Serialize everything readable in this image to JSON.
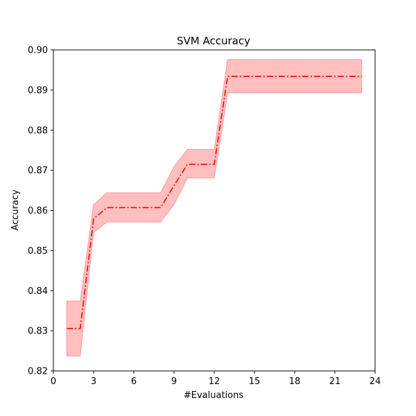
{
  "chart_data": {
    "type": "line",
    "title": "SVM Accuracy",
    "xlabel": "#Evaluations",
    "ylabel": "Accuracy",
    "xlim": [
      0,
      24
    ],
    "ylim": [
      0.82,
      0.9
    ],
    "xticks": [
      0,
      3,
      6,
      9,
      12,
      15,
      18,
      21,
      24
    ],
    "yticks": [
      0.82,
      0.83,
      0.84,
      0.85,
      0.86,
      0.87,
      0.88,
      0.89,
      0.9
    ],
    "xtick_labels": [
      "0",
      "3",
      "6",
      "9",
      "12",
      "15",
      "18",
      "21",
      "24"
    ],
    "ytick_labels": [
      "0.82",
      "0.83",
      "0.84",
      "0.85",
      "0.86",
      "0.87",
      "0.88",
      "0.89",
      "0.90"
    ],
    "grid": false,
    "colors": {
      "line": "#ff0000",
      "band": "#ffbfbf",
      "band_edge": "#ff9999"
    },
    "series": [
      {
        "x": [
          1,
          2,
          3,
          4,
          5,
          6,
          7,
          8,
          9,
          10,
          11,
          12,
          13,
          14,
          15,
          16,
          17,
          18,
          19,
          20,
          21,
          22,
          23
        ],
        "mean": [
          0.8306,
          0.8306,
          0.8579,
          0.8607,
          0.8607,
          0.8607,
          0.8607,
          0.8607,
          0.8662,
          0.8715,
          0.8715,
          0.8715,
          0.8934,
          0.8934,
          0.8934,
          0.8934,
          0.8934,
          0.8934,
          0.8934,
          0.8934,
          0.8934,
          0.8934,
          0.8934
        ],
        "lower": [
          0.8237,
          0.8237,
          0.8545,
          0.8571,
          0.8571,
          0.8571,
          0.8571,
          0.8571,
          0.8615,
          0.8681,
          0.8681,
          0.8681,
          0.8893,
          0.8893,
          0.8893,
          0.8893,
          0.8893,
          0.8893,
          0.8893,
          0.8893,
          0.8893,
          0.8893,
          0.8893
        ],
        "upper": [
          0.8374,
          0.8374,
          0.8614,
          0.8644,
          0.8644,
          0.8644,
          0.8644,
          0.8644,
          0.8709,
          0.8752,
          0.8752,
          0.8752,
          0.8976,
          0.8976,
          0.8976,
          0.8976,
          0.8976,
          0.8976,
          0.8976,
          0.8976,
          0.8976,
          0.8976,
          0.8976
        ]
      }
    ]
  }
}
